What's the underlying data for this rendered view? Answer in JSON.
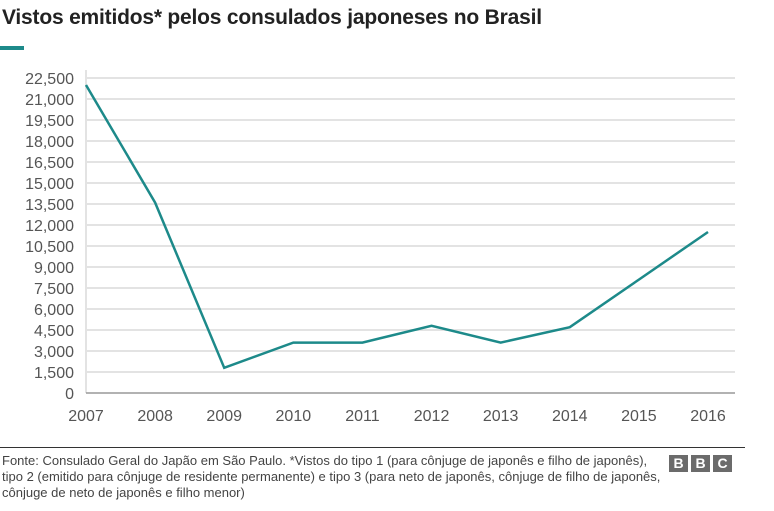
{
  "title": "Vistos emitidos* pelos consulados japoneses no Brasil",
  "accent_color": "#1d8a8a",
  "chart_data": {
    "type": "line",
    "title": "Vistos emitidos* pelos consulados japoneses no Brasil",
    "categories": [
      "2007",
      "2008",
      "2009",
      "2010",
      "2011",
      "2012",
      "2013",
      "2014",
      "2015",
      "2016"
    ],
    "series": [
      {
        "values": [
          22000,
          13600,
          1800,
          3600,
          3600,
          4800,
          3600,
          4700,
          8100,
          11500
        ],
        "color": "#1d8a8a"
      }
    ],
    "yticks": [
      "0",
      "1,500",
      "3,000",
      "4,500",
      "6,000",
      "7,500",
      "9,000",
      "10,500",
      "12,000",
      "13,500",
      "15,000",
      "16,500",
      "18,000",
      "19,500",
      "21,000",
      "22,500"
    ],
    "ylim": [
      0,
      22500
    ],
    "ystep": 1500,
    "grid": true,
    "xlabel": "",
    "ylabel": ""
  },
  "footer": {
    "source": "Fonte: Consulado Geral do Japão em São Paulo. *Vistos do tipo 1 (para cônjuge de japonês e filho de japonês), tipo 2 (emitido para cônjuge de residente permanente) e tipo 3 (para neto de japonês, cônjuge de filho de japonês, cônjuge de neto de japonês e filho menor)",
    "logo": [
      "B",
      "B",
      "C"
    ]
  }
}
